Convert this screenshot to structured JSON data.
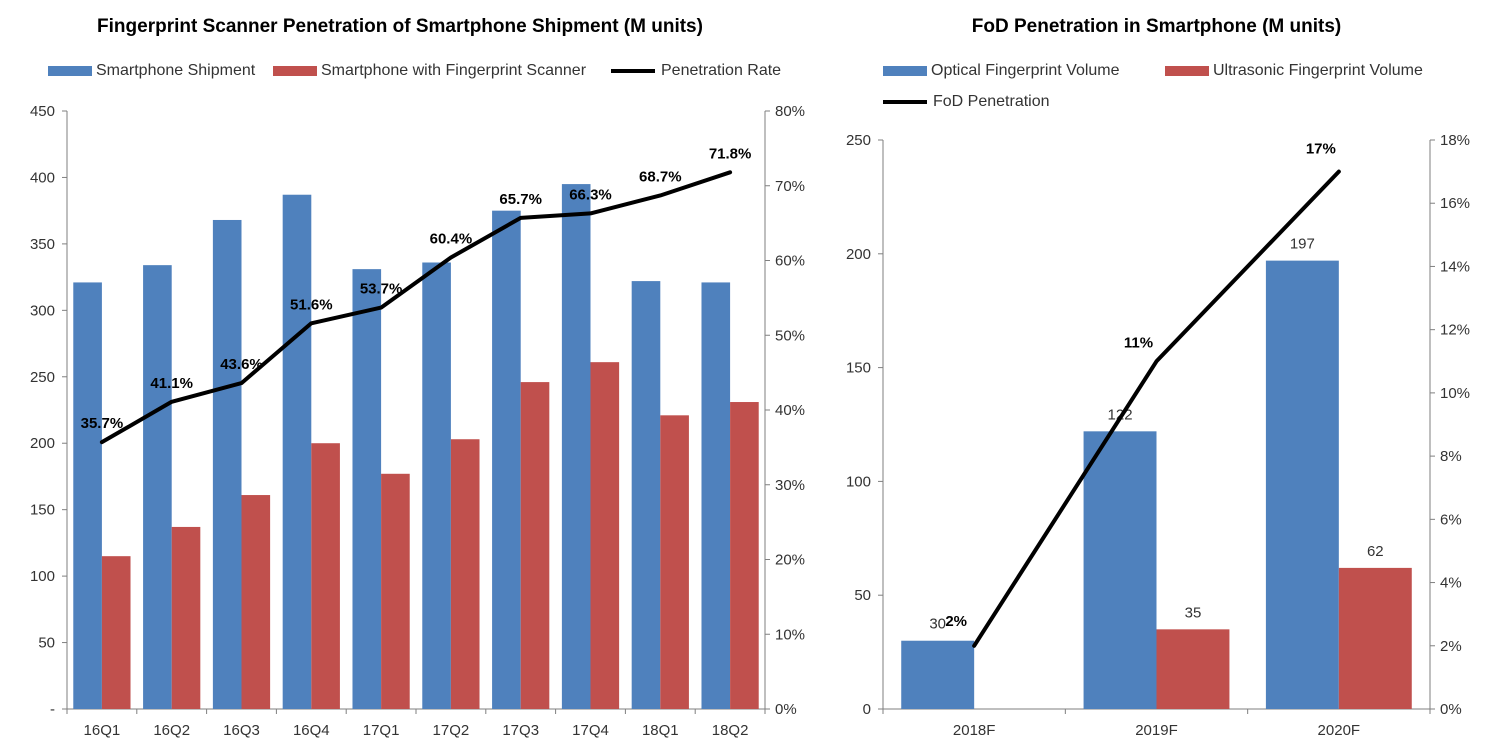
{
  "colors": {
    "blue": "#4f81bd",
    "red": "#c0504d",
    "line": "#000000",
    "axis": "#7f7f7f"
  },
  "chart_data": [
    {
      "type": "bar",
      "title": "Fingerprint Scanner Penetration of Smartphone Shipment (M units)",
      "categories": [
        "16Q1",
        "16Q2",
        "16Q3",
        "16Q4",
        "17Q1",
        "17Q2",
        "17Q3",
        "17Q4",
        "18Q1",
        "18Q2"
      ],
      "series": [
        {
          "name": "Smartphone Shipment",
          "kind": "bar",
          "axis": "left",
          "values": [
            321,
            334,
            368,
            387,
            331,
            336,
            375,
            395,
            322,
            321
          ]
        },
        {
          "name": "Smartphone with Fingerprint Scanner",
          "kind": "bar",
          "axis": "left",
          "values": [
            115,
            137,
            161,
            200,
            177,
            203,
            246,
            261,
            221,
            231
          ]
        },
        {
          "name": "Penetration Rate",
          "kind": "line",
          "axis": "right",
          "values": [
            35.7,
            41.1,
            43.6,
            51.6,
            53.7,
            60.4,
            65.7,
            66.3,
            68.7,
            71.8
          ],
          "labels": [
            "35.7%",
            "41.1%",
            "43.6%",
            "51.6%",
            "53.7%",
            "60.4%",
            "65.7%",
            "66.3%",
            "68.7%",
            "71.8%"
          ]
        }
      ],
      "ylim": [
        0,
        450
      ],
      "yticks": [
        "-",
        "50",
        "100",
        "150",
        "200",
        "250",
        "300",
        "350",
        "400",
        "450"
      ],
      "y2lim": [
        0,
        80
      ],
      "y2ticks": [
        "0%",
        "10%",
        "20%",
        "30%",
        "40%",
        "50%",
        "60%",
        "70%",
        "80%"
      ],
      "legend_position": "top",
      "grid": false
    },
    {
      "type": "bar",
      "title": "FoD Penetration in Smartphone (M units)",
      "categories": [
        "2018F",
        "2019F",
        "2020F"
      ],
      "series": [
        {
          "name": "Optical Fingerprint Volume",
          "kind": "bar",
          "axis": "left",
          "values": [
            30,
            122,
            197
          ],
          "labels": [
            "30",
            "122",
            "197"
          ]
        },
        {
          "name": "Ultrasonic Fingerprint Volume",
          "kind": "bar",
          "axis": "left",
          "values": [
            0,
            35,
            62
          ],
          "labels": [
            "",
            "35",
            "62"
          ]
        },
        {
          "name": "FoD Penetration",
          "kind": "line",
          "axis": "right",
          "values": [
            2,
            11,
            17
          ],
          "labels": [
            "2%",
            "11%",
            "17%"
          ]
        }
      ],
      "ylim": [
        0,
        250
      ],
      "yticks": [
        "0",
        "50",
        "100",
        "150",
        "200",
        "250"
      ],
      "y2lim": [
        0,
        18
      ],
      "y2ticks": [
        "0%",
        "2%",
        "4%",
        "6%",
        "8%",
        "10%",
        "12%",
        "14%",
        "16%",
        "18%"
      ],
      "legend_position": "top",
      "grid": false
    }
  ]
}
